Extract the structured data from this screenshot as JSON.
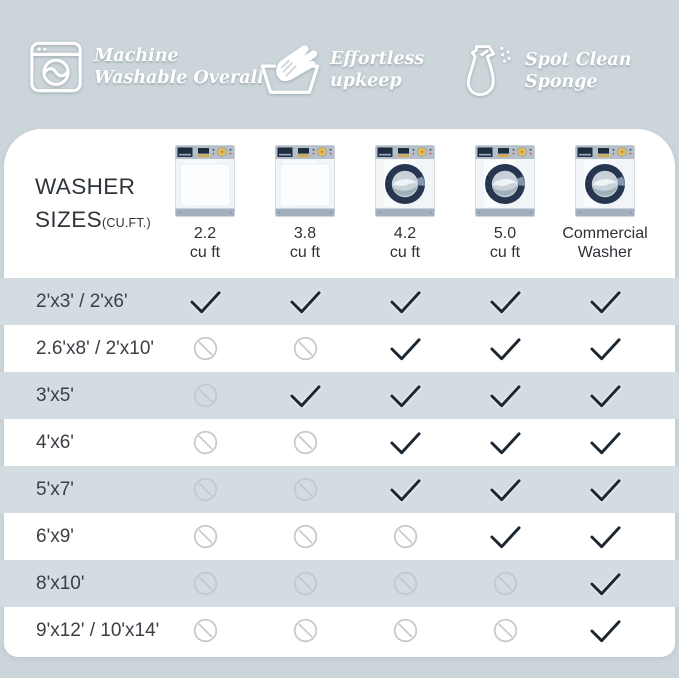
{
  "colors": {
    "background": "#ccd6da",
    "row_band": "#d3dce1",
    "card": "#ffffff",
    "check": "#1c2631",
    "not_allowed": "#c3c9ce",
    "text_dark": "#2f353b",
    "header_text": "#ffffff"
  },
  "header": {
    "features": [
      {
        "icon": "washing-machine-icon",
        "line1": "Machine",
        "line2": "Washable Overall"
      },
      {
        "icon": "hand-wash-icon",
        "line1": "Effortless",
        "line2": "upkeep"
      },
      {
        "icon": "spray-bottle-icon",
        "line1": "Spot Clean",
        "line2": "Sponge"
      }
    ]
  },
  "washer_sizes": {
    "title_line1": "WASHER",
    "title_line2": "SIZES",
    "title_suffix": "(CU.FT.)",
    "columns": [
      {
        "size": "2.2",
        "unit": "cu ft",
        "style": "top-loader"
      },
      {
        "size": "3.8",
        "unit": "cu ft",
        "style": "top-loader"
      },
      {
        "size": "4.2",
        "unit": "cu ft",
        "style": "front-loader"
      },
      {
        "size": "5.0",
        "unit": "cu ft",
        "style": "front-loader"
      },
      {
        "size": "Commercial",
        "unit": "Washer",
        "style": "front-loader"
      }
    ]
  },
  "compatibility": {
    "rows": [
      {
        "label": "2'x3'  /  2'x6'",
        "cells": [
          "check",
          "check",
          "check",
          "check",
          "check"
        ]
      },
      {
        "label": "2.6'x8' / 2'x10'",
        "cells": [
          "no",
          "no",
          "check",
          "check",
          "check"
        ]
      },
      {
        "label": "3'x5'",
        "cells": [
          "no",
          "check",
          "check",
          "check",
          "check"
        ]
      },
      {
        "label": "4'x6'",
        "cells": [
          "no",
          "no",
          "check",
          "check",
          "check"
        ]
      },
      {
        "label": "5'x7'",
        "cells": [
          "no",
          "no",
          "check",
          "check",
          "check"
        ]
      },
      {
        "label": "6'x9'",
        "cells": [
          "no",
          "no",
          "no",
          "check",
          "check"
        ]
      },
      {
        "label": "8'x10'",
        "cells": [
          "no",
          "no",
          "no",
          "no",
          "check"
        ]
      },
      {
        "label": "9'x12' / 10'x14'",
        "cells": [
          "no",
          "no",
          "no",
          "no",
          "check"
        ]
      }
    ]
  },
  "chart_data": {
    "type": "table",
    "title": "WASHER SIZES (CU.FT.)",
    "columns": [
      "2.2 cu ft",
      "3.8 cu ft",
      "4.2 cu ft",
      "5.0 cu ft",
      "Commercial Washer"
    ],
    "rows": [
      "2'x3' / 2'x6'",
      "2.6'x8' / 2'x10'",
      "3'x5'",
      "4'x6'",
      "5'x7'",
      "6'x9'",
      "8'x10'",
      "9'x12' / 10'x14'"
    ],
    "values": [
      [
        true,
        true,
        true,
        true,
        true
      ],
      [
        false,
        false,
        true,
        true,
        true
      ],
      [
        false,
        true,
        true,
        true,
        true
      ],
      [
        false,
        false,
        true,
        true,
        true
      ],
      [
        false,
        false,
        true,
        true,
        true
      ],
      [
        false,
        false,
        false,
        true,
        true
      ],
      [
        false,
        false,
        false,
        false,
        true
      ],
      [
        false,
        false,
        false,
        false,
        true
      ]
    ],
    "legend": {
      "true": "machine washable (check mark)",
      "false": "not suitable (prohibited circle)"
    }
  }
}
